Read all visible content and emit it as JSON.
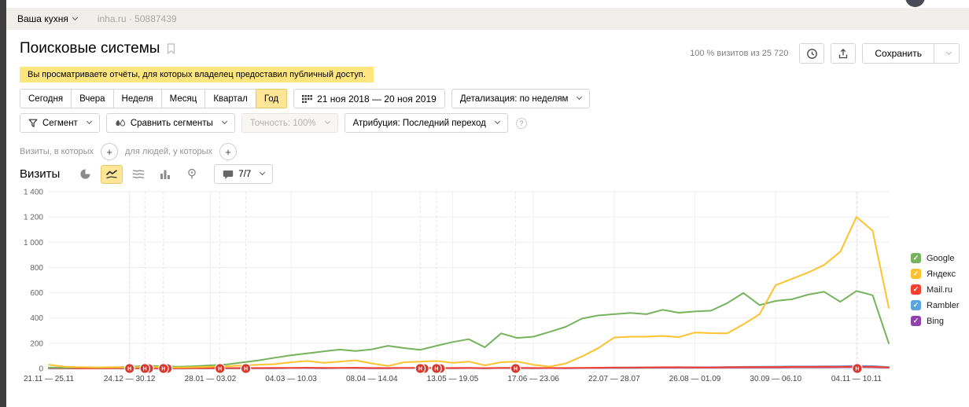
{
  "topbar": {
    "counter_name": "Ваша кухня",
    "site_meta": "inha.ru · 50887439"
  },
  "header": {
    "title": "Поисковые системы",
    "sampling": "100 % визитов из 25 720",
    "save_label": "Сохранить"
  },
  "notice_text": "Вы просматриваете отчёты, для которых владелец предоставил публичный доступ.",
  "period_bar": {
    "tabs": [
      "Сегодня",
      "Вчера",
      "Неделя",
      "Месяц",
      "Квартал",
      "Год"
    ],
    "selected_tab": "Год",
    "date_range": "21 ноя 2018 — 20 ноя 2019",
    "detail_label": "Детализация: по неделям"
  },
  "segment_bar": {
    "segment_label": "Сегмент",
    "compare_label": "Сравнить сегменты",
    "accuracy_label": "Точность: 100%",
    "attribution_label": "Атрибуция: Последний переход"
  },
  "quick_filters": {
    "visits_label": "Визиты, в которых",
    "people_label": "для людей, у которых"
  },
  "chart_controls": {
    "metric_label": "Визиты",
    "goals_label": "7/7"
  },
  "chart_data": {
    "type": "line",
    "title": "Визиты",
    "legend_position": "right",
    "grid": true,
    "weeks_total": 53,
    "ylim": [
      0,
      1400
    ],
    "y_tick_step": 200,
    "y_tick_labels": [
      "0",
      "200",
      "400",
      "600",
      "800",
      "1 000",
      "1 200",
      "1 400"
    ],
    "x_tick_weeks": [
      0,
      5,
      10,
      15,
      20,
      25,
      30,
      35,
      40,
      45,
      50
    ],
    "x_tick_labels": [
      "21.11 — 25.11",
      "24.12 — 30.12",
      "28.01 — 03.02",
      "04.03 — 10.03",
      "08.04 — 14.04",
      "13.05 — 19.05",
      "17.06 — 23.06",
      "22.07 — 28.07",
      "26.08 — 01.09",
      "30.09 — 06.10",
      "04.11 — 10.11"
    ],
    "series": [
      {
        "name": "Google",
        "color": "#77b35c",
        "values": [
          8,
          6,
          10,
          8,
          10,
          12,
          22,
          18,
          14,
          18,
          25,
          32,
          48,
          65,
          85,
          105,
          120,
          135,
          150,
          138,
          152,
          180,
          162,
          148,
          180,
          210,
          232,
          168,
          278,
          242,
          252,
          290,
          330,
          395,
          420,
          430,
          440,
          430,
          465,
          442,
          452,
          458,
          518,
          598,
          502,
          535,
          548,
          585,
          608,
          528,
          614,
          580,
          200
        ]
      },
      {
        "name": "Яндекс",
        "color": "#fdc22d",
        "values": [
          30,
          14,
          10,
          8,
          10,
          8,
          14,
          10,
          8,
          10,
          14,
          18,
          24,
          30,
          35,
          50,
          60,
          45,
          55,
          65,
          40,
          20,
          50,
          55,
          60,
          45,
          55,
          25,
          50,
          55,
          30,
          15,
          40,
          95,
          160,
          245,
          252,
          252,
          258,
          248,
          285,
          280,
          278,
          350,
          430,
          660,
          710,
          760,
          820,
          925,
          1200,
          1090,
          480
        ]
      },
      {
        "name": "Mail.ru",
        "color": "#f5402f",
        "values": [
          4,
          3,
          2,
          2,
          3,
          2,
          3,
          2,
          2,
          3,
          3,
          3,
          4,
          4,
          5,
          5,
          6,
          5,
          5,
          6,
          4,
          4,
          5,
          5,
          5,
          4,
          5,
          3,
          5,
          5,
          4,
          4,
          4,
          5,
          6,
          8,
          8,
          9,
          10,
          10,
          9,
          9,
          10,
          11,
          12,
          12,
          13,
          13,
          14,
          14,
          15,
          14,
          8
        ]
      },
      {
        "name": "Rambler",
        "color": "#58a6e0",
        "values": [
          2,
          2,
          1,
          1,
          2,
          1,
          2,
          1,
          1,
          2,
          2,
          2,
          2,
          3,
          3,
          3,
          4,
          3,
          3,
          4,
          3,
          3,
          3,
          3,
          4,
          3,
          4,
          2,
          4,
          4,
          3,
          3,
          3,
          4,
          5,
          6,
          7,
          8,
          9,
          10,
          10,
          10,
          12,
          13,
          14,
          15,
          16,
          16,
          17,
          18,
          20,
          19,
          12
        ]
      },
      {
        "name": "Bing",
        "color": "#9041ac",
        "values": [
          1,
          1,
          1,
          1,
          1,
          1,
          1,
          1,
          1,
          1,
          1,
          2,
          2,
          2,
          2,
          3,
          3,
          2,
          3,
          3,
          2,
          2,
          3,
          3,
          3,
          2,
          3,
          2,
          3,
          3,
          2,
          3,
          2,
          3,
          4,
          5,
          5,
          6,
          6,
          7,
          7,
          7,
          8,
          8,
          9,
          9,
          10,
          10,
          10,
          11,
          12,
          11,
          7
        ]
      }
    ],
    "annotation_markers": {
      "glyph": "Н",
      "color": "#d5392e",
      "items": [
        {
          "week": 5.0,
          "double": false
        },
        {
          "week": 5.95,
          "double": true
        },
        {
          "week": 7.1,
          "double": true
        },
        {
          "week": 10.6,
          "double": false
        },
        {
          "week": 12.2,
          "double": false
        },
        {
          "week": 23.0,
          "double": true
        },
        {
          "week": 24.0,
          "double": true
        },
        {
          "week": 28.9,
          "double": false
        },
        {
          "week": 50.05,
          "double": false
        }
      ]
    }
  }
}
